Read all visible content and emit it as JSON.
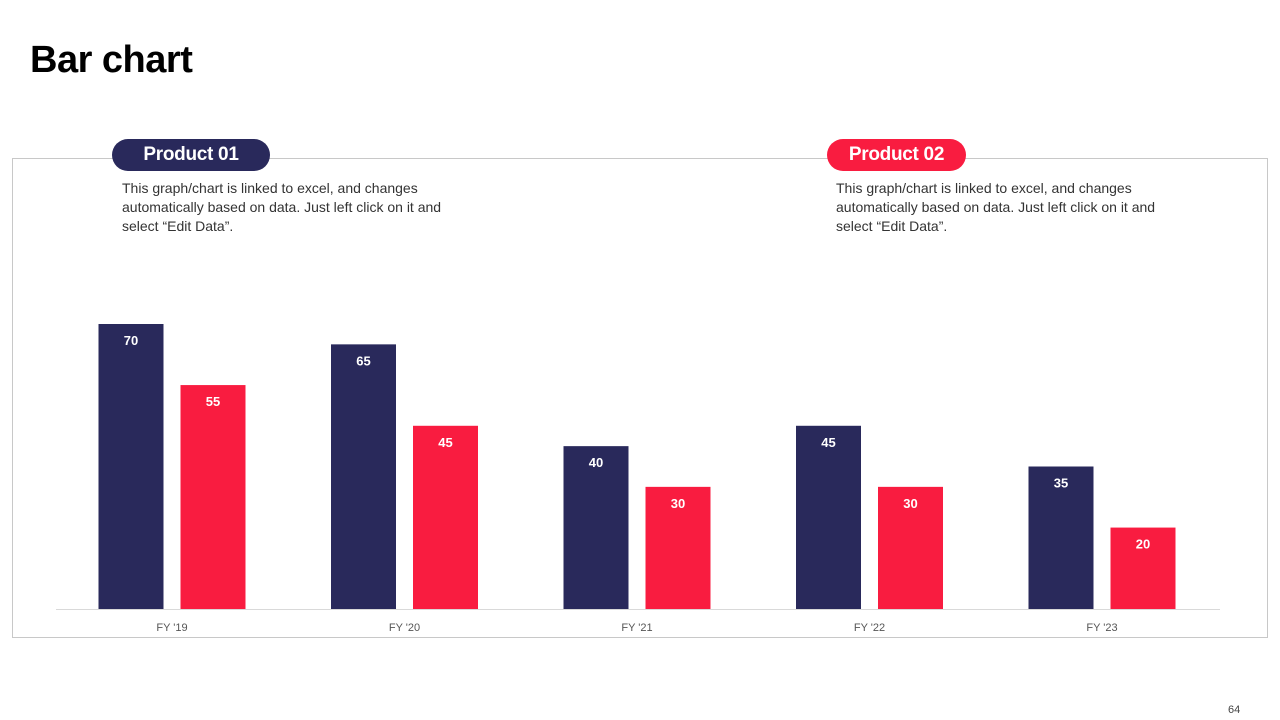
{
  "slide": {
    "title": "Bar chart",
    "page_number": "64"
  },
  "legend": [
    {
      "name": "Product 01",
      "color": "#29295b",
      "description": "This graph/chart is linked to excel, and changes automatically based on data. Just left click on it and select “Edit Data”."
    },
    {
      "name": "Product 02",
      "color": "#f91c40",
      "description": "This graph/chart is linked to excel, and changes automatically based on data. Just left click on it and select “Edit Data”."
    }
  ],
  "chart_data": {
    "type": "bar",
    "title": "",
    "xlabel": "",
    "ylabel": "",
    "ylim": [
      0,
      70
    ],
    "categories": [
      "FY '19",
      "FY '20",
      "FY '21",
      "FY '22",
      "FY '23"
    ],
    "series": [
      {
        "name": "Product 01",
        "color": "#29295b",
        "values": [
          70,
          65,
          40,
          45,
          35
        ]
      },
      {
        "name": "Product 02",
        "color": "#f91c40",
        "values": [
          55,
          45,
          30,
          30,
          20
        ]
      }
    ],
    "grid": false,
    "data_labels": true,
    "legend_placement": "top"
  }
}
